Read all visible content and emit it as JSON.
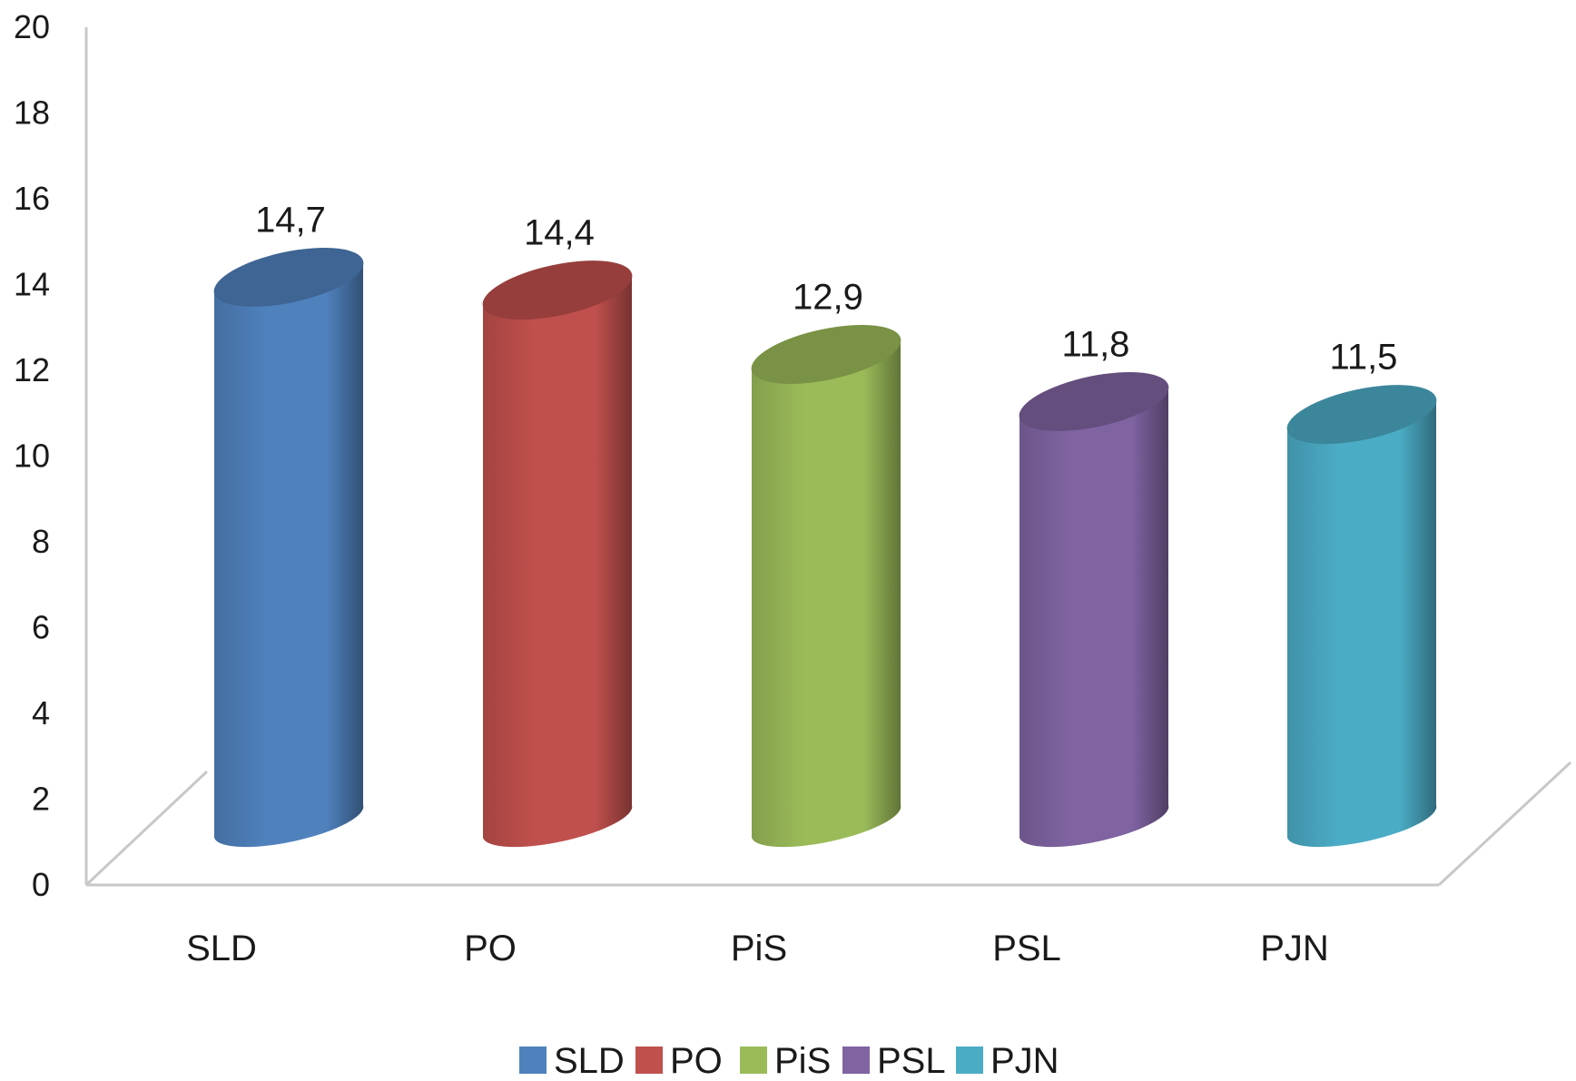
{
  "chart_data": {
    "type": "bar",
    "style": "3d-cylinder",
    "categories": [
      "SLD",
      "PO",
      "PiS",
      "PSL",
      "PJN"
    ],
    "values": [
      14.7,
      14.4,
      12.9,
      11.8,
      11.5
    ],
    "value_labels": [
      "14,7",
      "14,4",
      "12,9",
      "11,8",
      "11,5"
    ],
    "y_ticks": [
      "0",
      "2",
      "4",
      "6",
      "8",
      "10",
      "12",
      "14",
      "16",
      "18",
      "20"
    ],
    "ylim": [
      0,
      20
    ],
    "grid": false,
    "legend": {
      "position": "bottom",
      "entries": [
        "SLD",
        "PO",
        "PiS",
        "PSL",
        "PJN"
      ]
    },
    "colors": [
      "#4f81bd",
      "#c0504d",
      "#9bbb59",
      "#8064a2",
      "#4bacc6"
    ]
  }
}
